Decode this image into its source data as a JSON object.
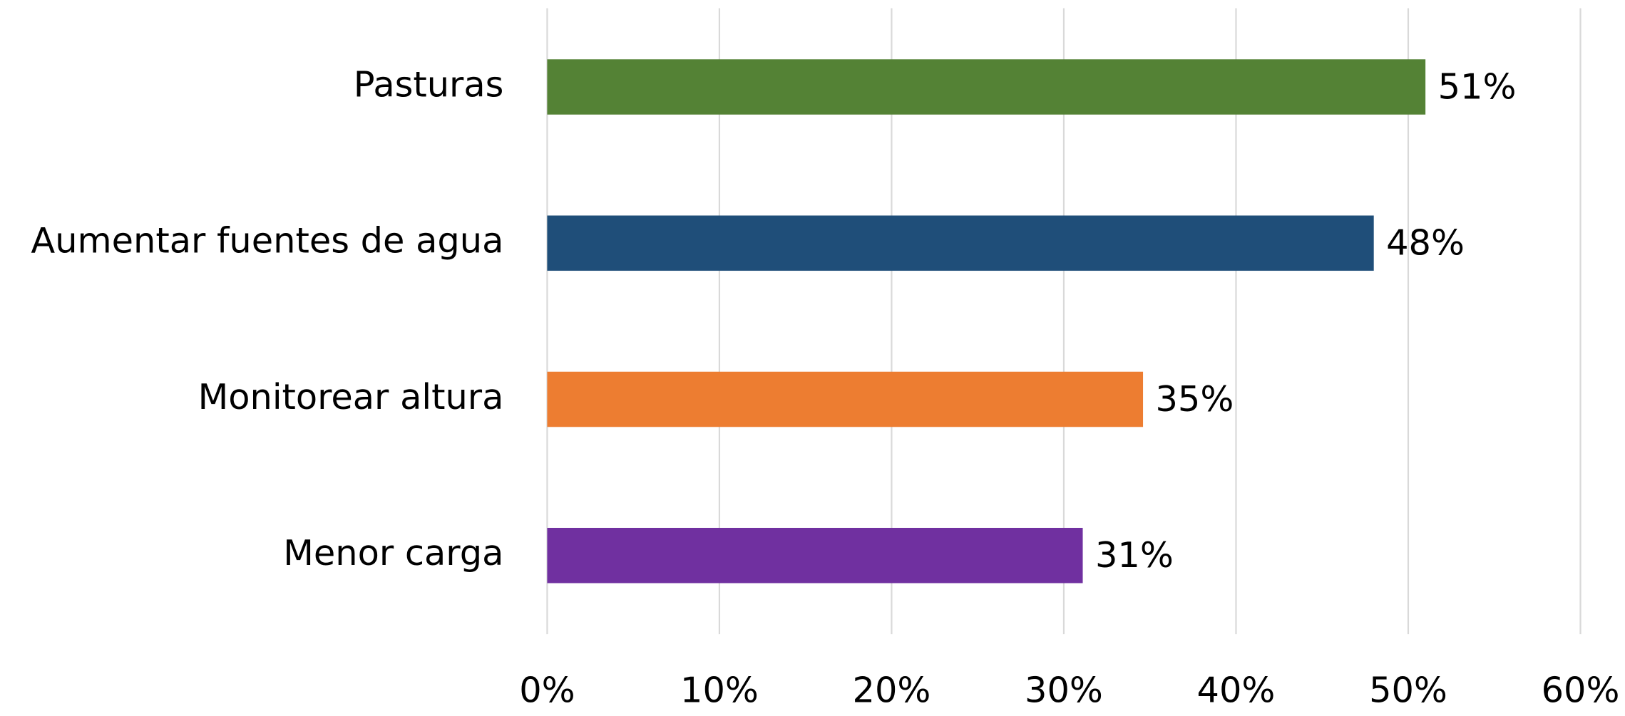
{
  "chart_data": {
    "type": "hbar",
    "categories": [
      "Pasturas",
      "Aumentar fuentes de agua",
      "Monitorear altura",
      "Menor carga"
    ],
    "values": [
      51,
      48,
      34.6,
      31.1
    ],
    "value_labels": [
      "51%",
      "48%",
      "35%",
      "31%"
    ],
    "colors": [
      "#548235",
      "#1f4e79",
      "#ed7d31",
      "#7030a0"
    ],
    "xlim": [
      0,
      60
    ],
    "xticks": [
      {
        "value": 0,
        "label": "0%"
      },
      {
        "value": 10,
        "label": "10%"
      },
      {
        "value": 20,
        "label": "20%"
      },
      {
        "value": 30,
        "label": "30%"
      },
      {
        "value": 40,
        "label": "40%"
      },
      {
        "value": 50,
        "label": "50%"
      },
      {
        "value": 60,
        "label": "60%"
      }
    ],
    "grid": true
  }
}
